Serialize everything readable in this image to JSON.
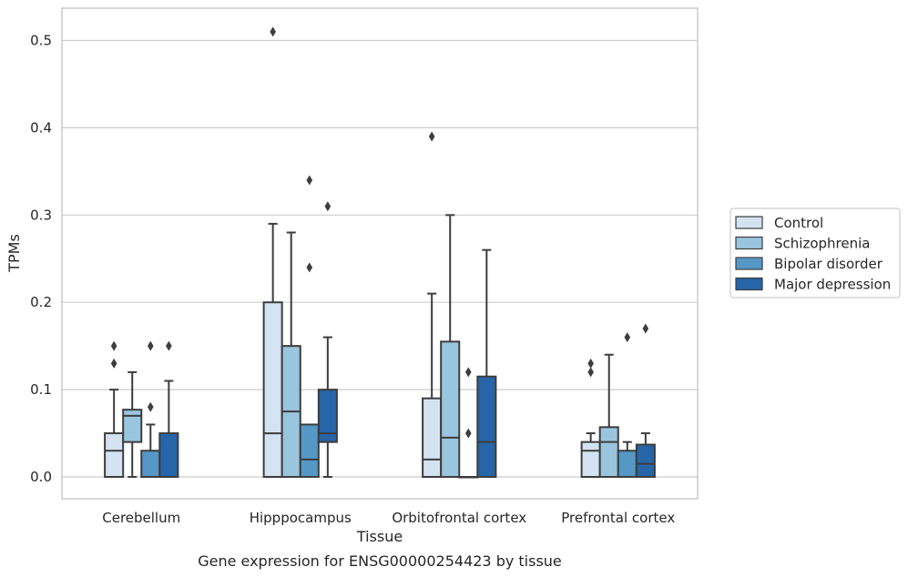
{
  "caption": "Gene expression for ENSG00000254423 by tissue",
  "chart_data": {
    "type": "box",
    "title": "",
    "xlabel": "Tissue",
    "ylabel": "TPMs",
    "ylim": [
      -0.025,
      0.537
    ],
    "yticks": [
      0.0,
      0.1,
      0.2,
      0.3,
      0.4,
      0.5
    ],
    "ytick_labels": [
      "0.0",
      "0.1",
      "0.2",
      "0.3",
      "0.4",
      "0.5"
    ],
    "grid": "horizontal",
    "legend_position": "right",
    "categories": [
      "Cerebellum",
      "Hipppocampus",
      "Orbitofrontal cortex",
      "Prefrontal cortex"
    ],
    "series": [
      {
        "name": "Control",
        "color": "#d3e3f2",
        "boxes": [
          {
            "whislo": 0.0,
            "q1": 0.0,
            "med": 0.03,
            "q3": 0.05,
            "whishi": 0.1,
            "fliers": [
              0.13,
              0.15
            ]
          },
          {
            "whislo": 0.0,
            "q1": 0.0,
            "med": 0.05,
            "q3": 0.2,
            "whishi": 0.29,
            "fliers": [
              0.51
            ]
          },
          {
            "whislo": 0.0,
            "q1": 0.0,
            "med": 0.02,
            "q3": 0.09,
            "whishi": 0.21,
            "fliers": [
              0.39
            ]
          },
          {
            "whislo": 0.0,
            "q1": 0.0,
            "med": 0.03,
            "q3": 0.04,
            "whishi": 0.05,
            "fliers": [
              0.12,
              0.13
            ]
          }
        ]
      },
      {
        "name": "Schizophrenia",
        "color": "#9ac5de",
        "boxes": [
          {
            "whislo": 0.0,
            "q1": 0.04,
            "med": 0.07,
            "q3": 0.077,
            "whishi": 0.12,
            "fliers": []
          },
          {
            "whislo": 0.0,
            "q1": 0.0,
            "med": 0.075,
            "q3": 0.15,
            "whishi": 0.28,
            "fliers": []
          },
          {
            "whislo": 0.0,
            "q1": 0.0,
            "med": 0.045,
            "q3": 0.155,
            "whishi": 0.3,
            "fliers": []
          },
          {
            "whislo": 0.0,
            "q1": 0.0,
            "med": 0.04,
            "q3": 0.057,
            "whishi": 0.14,
            "fliers": []
          }
        ]
      },
      {
        "name": "Bipolar disorder",
        "color": "#5598c6",
        "boxes": [
          {
            "whislo": 0.0,
            "q1": 0.0,
            "med": 0.0,
            "q3": 0.03,
            "whishi": 0.06,
            "fliers": [
              0.08,
              0.15
            ]
          },
          {
            "whislo": 0.0,
            "q1": 0.0,
            "med": 0.02,
            "q3": 0.06,
            "whishi": 0.06,
            "fliers": [
              0.24,
              0.34
            ]
          },
          {
            "whislo": 0.0,
            "q1": 0.0,
            "med": 0.0,
            "q3": 0.0,
            "whishi": 0.0,
            "fliers": [
              0.05,
              0.12
            ]
          },
          {
            "whislo": 0.0,
            "q1": 0.0,
            "med": 0.0,
            "q3": 0.03,
            "whishi": 0.04,
            "fliers": [
              0.16
            ]
          }
        ]
      },
      {
        "name": "Major depression",
        "color": "#2565a8",
        "boxes": [
          {
            "whislo": 0.0,
            "q1": 0.0,
            "med": 0.0,
            "q3": 0.05,
            "whishi": 0.11,
            "fliers": [
              0.15
            ]
          },
          {
            "whislo": 0.0,
            "q1": 0.04,
            "med": 0.05,
            "q3": 0.1,
            "whishi": 0.16,
            "fliers": [
              0.31
            ]
          },
          {
            "whislo": 0.0,
            "q1": 0.0,
            "med": 0.04,
            "q3": 0.115,
            "whishi": 0.26,
            "fliers": []
          },
          {
            "whislo": 0.0,
            "q1": 0.0,
            "med": 0.015,
            "q3": 0.037,
            "whishi": 0.05,
            "fliers": [
              0.17
            ]
          }
        ]
      }
    ]
  }
}
